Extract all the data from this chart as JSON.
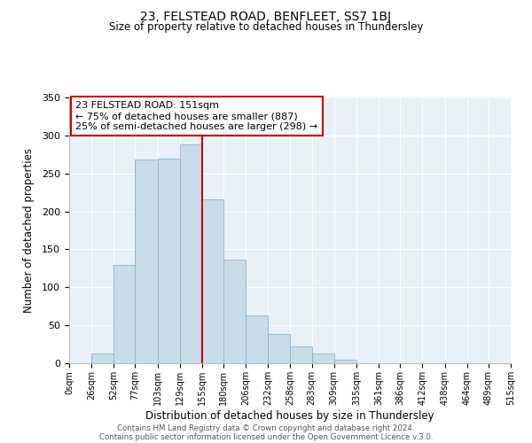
{
  "title": "23, FELSTEAD ROAD, BENFLEET, SS7 1BJ",
  "subtitle": "Size of property relative to detached houses in Thundersley",
  "xlabel": "Distribution of detached houses by size in Thundersley",
  "ylabel": "Number of detached properties",
  "bar_color": "#c9dcea",
  "bar_edge_color": "#8ab4cc",
  "background_color": "#e8f0f8",
  "grid_color": "#ffffff",
  "vline_color": "#cc0000",
  "annotation_box_edgecolor": "#cc0000",
  "bins": [
    0,
    26,
    52,
    77,
    103,
    129,
    155,
    180,
    206,
    232,
    258,
    283,
    309,
    335,
    361,
    386,
    412,
    438,
    464,
    489,
    515
  ],
  "bin_labels": [
    "0sqm",
    "26sqm",
    "52sqm",
    "77sqm",
    "103sqm",
    "129sqm",
    "155sqm",
    "180sqm",
    "206sqm",
    "232sqm",
    "258sqm",
    "283sqm",
    "309sqm",
    "335sqm",
    "361sqm",
    "386sqm",
    "412sqm",
    "438sqm",
    "464sqm",
    "489sqm",
    "515sqm"
  ],
  "bar_heights": [
    0,
    13,
    130,
    268,
    270,
    288,
    216,
    136,
    63,
    38,
    22,
    13,
    5,
    0,
    0,
    0,
    0,
    0,
    0,
    0
  ],
  "vline_x": 155,
  "ylim": [
    0,
    350
  ],
  "yticks": [
    0,
    50,
    100,
    150,
    200,
    250,
    300,
    350
  ],
  "ann_title": "23 FELSTEAD ROAD: 151sqm",
  "ann_line1": "← 75% of detached houses are smaller (887)",
  "ann_line2": "25% of semi-detached houses are larger (298) →",
  "footer_line1": "Contains HM Land Registry data © Crown copyright and database right 2024.",
  "footer_line2": "Contains public sector information licensed under the Open Government Licence v.3.0."
}
